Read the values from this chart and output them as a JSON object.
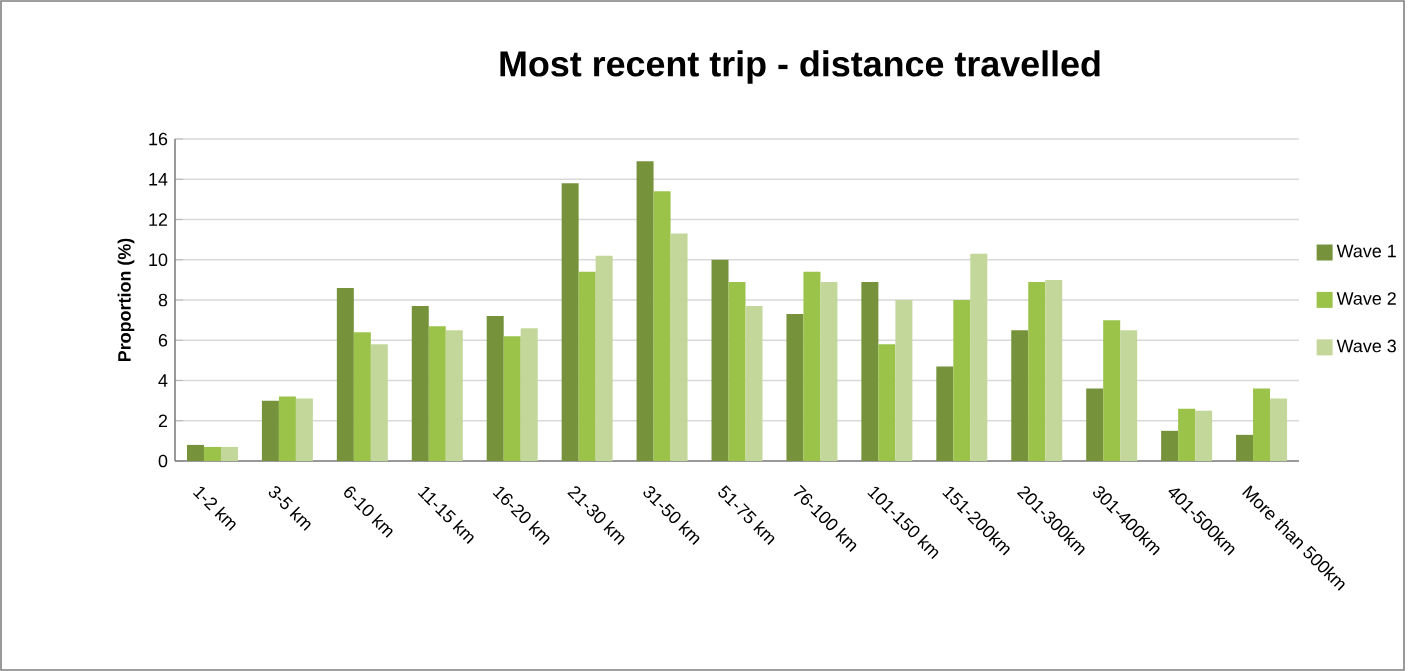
{
  "chart_data": {
    "type": "bar",
    "title": "Most recent trip - distance travelled",
    "ylabel": "Proportion (%)",
    "categories": [
      "1-2 km",
      "3-5 km",
      "6-10 km",
      "11-15 km",
      "16-20 km",
      "21-30 km",
      "31-50 km",
      "51-75 km",
      "76-100 km",
      "101-150 km",
      "151-200km",
      "201-300km",
      "301-400km",
      "401-500km",
      "More than 500km"
    ],
    "series": [
      {
        "name": "Wave 1",
        "color": "#76933c",
        "values": [
          0.8,
          3.0,
          8.6,
          7.7,
          7.2,
          13.8,
          14.9,
          10.0,
          7.3,
          8.9,
          4.7,
          6.5,
          3.6,
          1.5,
          1.3
        ]
      },
      {
        "name": "Wave 2",
        "color": "#9bc34a",
        "values": [
          0.7,
          3.2,
          6.4,
          6.7,
          6.2,
          9.4,
          13.4,
          8.9,
          9.4,
          5.8,
          8.0,
          8.9,
          7.0,
          2.6,
          3.6
        ]
      },
      {
        "name": "Wave 3",
        "color": "#c4d79b",
        "values": [
          0.7,
          3.1,
          5.8,
          6.5,
          6.6,
          10.2,
          11.3,
          7.7,
          8.9,
          8.0,
          10.3,
          9.0,
          6.5,
          2.5,
          3.1
        ]
      }
    ],
    "ylim": [
      0,
      16
    ],
    "yticks": [
      0,
      2,
      4,
      6,
      8,
      10,
      12,
      14,
      16
    ],
    "grid": "y",
    "legend": "right"
  }
}
